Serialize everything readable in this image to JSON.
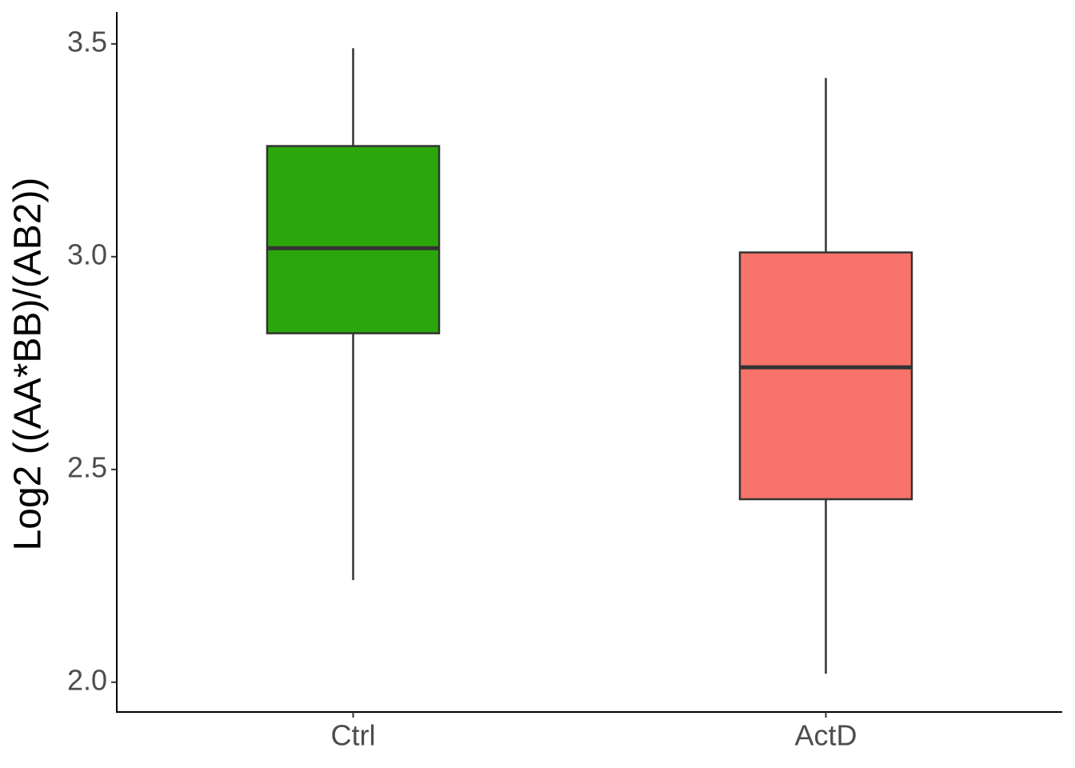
{
  "chart_data": {
    "type": "box",
    "y_label": "Log2 ((AA*BB)/(AB2))",
    "categories": [
      "Ctrl",
      "ActD"
    ],
    "boxes": [
      {
        "min": 2.24,
        "q1": 2.82,
        "median": 3.02,
        "q3": 3.26,
        "max": 3.49
      },
      {
        "min": 2.02,
        "q1": 2.43,
        "median": 2.74,
        "q3": 3.01,
        "max": 3.42
      }
    ],
    "colors": [
      "#2ca70b",
      "#f87369"
    ],
    "ylim": [
      1.93,
      3.575
    ],
    "yticks": [
      {
        "value": 2.0,
        "label": "2.0"
      },
      2.5,
      {
        "value": 3.0,
        "label": "3.0"
      },
      3.5
    ],
    "grid": false
  }
}
